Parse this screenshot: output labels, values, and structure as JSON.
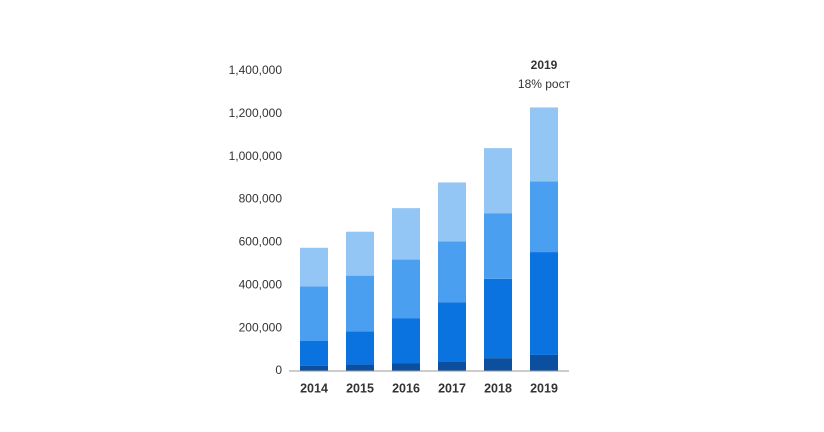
{
  "chart_data": {
    "type": "stacked_bar",
    "categories": [
      "2014",
      "2015",
      "2016",
      "2017",
      "2018",
      "2019"
    ],
    "series": [
      {
        "color": "#0b4f9e",
        "values": [
          25000,
          30000,
          35000,
          45000,
          60000,
          75000
        ]
      },
      {
        "color": "#0a73e0",
        "values": [
          115000,
          155000,
          210000,
          275000,
          370000,
          480000
        ]
      },
      {
        "color": "#4a9ff0",
        "values": [
          255000,
          260000,
          275000,
          285000,
          305000,
          330000
        ]
      },
      {
        "color": "#93c6f5",
        "values": [
          180000,
          205000,
          240000,
          275000,
          305000,
          345000
        ]
      }
    ],
    "ylim": [
      0,
      1400000
    ],
    "yticks": [
      0,
      {
        "value": 200000,
        "label": "200,000"
      },
      {
        "value": 400000,
        "label": "400,000"
      },
      {
        "value": 600000,
        "label": "600,000"
      },
      {
        "value": 800000,
        "label": "800,000"
      },
      {
        "value": 1000000,
        "label": "1,000,000"
      },
      {
        "value": 1200000,
        "label": "1,200,000"
      },
      {
        "value": 1400000,
        "label": "1,400,000"
      }
    ],
    "annotation": {
      "title": "2019",
      "text": "18% рост"
    }
  }
}
